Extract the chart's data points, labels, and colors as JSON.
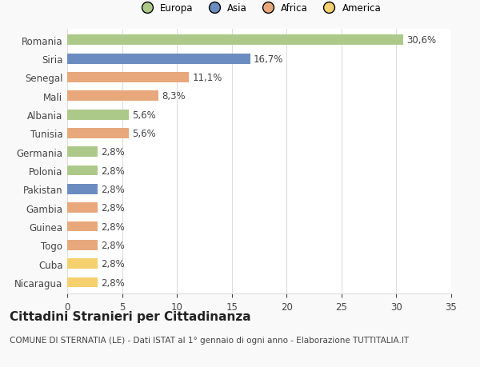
{
  "countries": [
    "Romania",
    "Siria",
    "Senegal",
    "Mali",
    "Albania",
    "Tunisia",
    "Germania",
    "Polonia",
    "Pakistan",
    "Gambia",
    "Guinea",
    "Togo",
    "Cuba",
    "Nicaragua"
  ],
  "values": [
    30.6,
    16.7,
    11.1,
    8.3,
    5.6,
    5.6,
    2.8,
    2.8,
    2.8,
    2.8,
    2.8,
    2.8,
    2.8,
    2.8
  ],
  "colors": [
    "#adc98a",
    "#6b8cbf",
    "#e8a87c",
    "#e8a87c",
    "#adc98a",
    "#e8a87c",
    "#adc98a",
    "#adc98a",
    "#6b8cbf",
    "#e8a87c",
    "#e8a87c",
    "#e8a87c",
    "#f5d06e",
    "#f5d06e"
  ],
  "labels": [
    "30,6%",
    "16,7%",
    "11,1%",
    "8,3%",
    "5,6%",
    "5,6%",
    "2,8%",
    "2,8%",
    "2,8%",
    "2,8%",
    "2,8%",
    "2,8%",
    "2,8%",
    "2,8%"
  ],
  "legend_labels": [
    "Europa",
    "Asia",
    "Africa",
    "America"
  ],
  "legend_colors": [
    "#adc98a",
    "#6b8cbf",
    "#e8a87c",
    "#f5d06e"
  ],
  "title": "Cittadini Stranieri per Cittadinanza",
  "subtitle": "COMUNE DI STERNATIA (LE) - Dati ISTAT al 1° gennaio di ogni anno - Elaborazione TUTTITALIA.IT",
  "xlim": [
    0,
    35
  ],
  "xticks": [
    0,
    5,
    10,
    15,
    20,
    25,
    30,
    35
  ],
  "background_color": "#f9f9f9",
  "plot_background": "#ffffff",
  "grid_color": "#dddddd",
  "bar_height": 0.55,
  "text_color": "#444444",
  "label_fontsize": 8.5,
  "tick_fontsize": 8.5,
  "title_fontsize": 11,
  "subtitle_fontsize": 7.5
}
